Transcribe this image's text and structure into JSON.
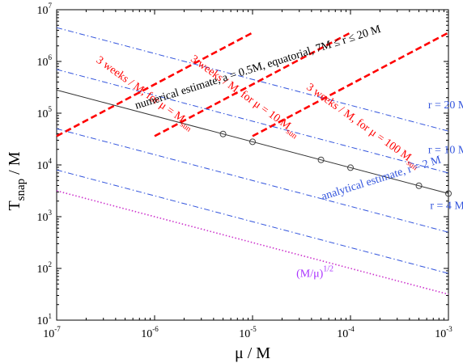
{
  "chart_data": {
    "type": "line",
    "xscale": "log",
    "yscale": "log",
    "xlim": [
      1e-07,
      0.001
    ],
    "ylim": [
      10,
      10000000.0
    ],
    "xlabel": "μ / M",
    "ylabel_main": "T",
    "ylabel_sub": "snap",
    "ylabel_rest": " / M",
    "x_ticks": [
      {
        "base": "10",
        "exp": "-7"
      },
      {
        "base": "10",
        "exp": "-6"
      },
      {
        "base": "10",
        "exp": "-5"
      },
      {
        "base": "10",
        "exp": "-4"
      },
      {
        "base": "10",
        "exp": "-3"
      }
    ],
    "y_ticks": [
      {
        "base": "10",
        "exp": "1"
      },
      {
        "base": "10",
        "exp": "2"
      },
      {
        "base": "10",
        "exp": "3"
      },
      {
        "base": "10",
        "exp": "4"
      },
      {
        "base": "10",
        "exp": "5"
      },
      {
        "base": "10",
        "exp": "6"
      },
      {
        "base": "10",
        "exp": "7"
      }
    ],
    "grid": false,
    "series": [
      {
        "id": "three-weeks-1msun",
        "style": "dashed",
        "color": "#ff0000",
        "x": [
          1e-07,
          1e-05
        ],
        "y": [
          36000,
          3600000
        ],
        "label": {
          "main": "3 weeks / M, for μ = M",
          "sub": "sun"
        }
      },
      {
        "id": "three-weeks-10msun",
        "style": "dashed",
        "color": "#ff0000",
        "x": [
          1e-06,
          0.0001
        ],
        "y": [
          36000,
          3600000
        ],
        "label": {
          "main": "3 weeks / M, for μ = 10 M",
          "sub": "sun"
        }
      },
      {
        "id": "three-weeks-100msun",
        "style": "dashed",
        "color": "#ff0000",
        "x": [
          1e-05,
          0.001
        ],
        "y": [
          36000,
          3600000
        ],
        "label": {
          "main": "3 weeks / M, for μ = 100 M",
          "sub": "sun"
        }
      },
      {
        "id": "analytical-r20",
        "style": "dashdot",
        "color": "#3355dd",
        "x": [
          1e-07,
          0.001
        ],
        "y": [
          4500000,
          45000
        ],
        "label": {
          "main": "r = 20 M",
          "sub": ""
        }
      },
      {
        "id": "analytical-r10",
        "style": "dashdot",
        "color": "#3355dd",
        "x": [
          1e-07,
          0.001
        ],
        "y": [
          700000,
          7000
        ],
        "label": {
          "main": "r = 10 M",
          "sub": ""
        }
      },
      {
        "id": "analytical-r4",
        "style": "dashdot",
        "color": "#3355dd",
        "x": [
          1e-07,
          0.001
        ],
        "y": [
          50000,
          500
        ],
        "label": {
          "main": "r = 4 M",
          "sub": ""
        }
      },
      {
        "id": "analytical-r2",
        "style": "dashdot",
        "color": "#3355dd",
        "x": [
          1e-07,
          0.001
        ],
        "y": [
          8000,
          80
        ],
        "label": {
          "main": "analytical estimate, r = 2 M",
          "sub": ""
        }
      },
      {
        "id": "numerical",
        "style": "solid",
        "color": "#333333",
        "x": [
          1e-07,
          0.001
        ],
        "y": [
          280000,
          2800
        ],
        "points": [
          [
            5e-06,
            39600
          ],
          [
            1e-05,
            28000
          ],
          [
            5e-05,
            12520
          ],
          [
            0.0001,
            8850
          ],
          [
            0.0005,
            3960
          ],
          [
            0.001,
            2800
          ]
        ],
        "label": {
          "main": "numerical estimate, a = 0.5M, equatorial, 7M ≤ r ≤ 20 M",
          "sub": ""
        }
      },
      {
        "id": "sqrt-m-over-mu",
        "style": "dotted",
        "color": "#cc33cc",
        "x": [
          1e-07,
          0.001
        ],
        "y": [
          3162,
          31.6
        ],
        "label": {
          "main": "(M/μ)",
          "sup": "1/2"
        }
      }
    ]
  }
}
